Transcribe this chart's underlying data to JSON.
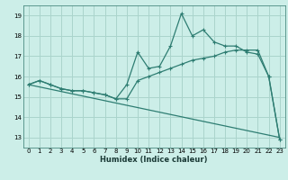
{
  "xlabel": "Humidex (Indice chaleur)",
  "bg_color": "#cceee8",
  "grid_color": "#aad4cc",
  "line_color": "#2e7d72",
  "xlim": [
    -0.5,
    23.5
  ],
  "ylim": [
    12.5,
    19.5
  ],
  "xticks": [
    0,
    1,
    2,
    3,
    4,
    5,
    6,
    7,
    8,
    9,
    10,
    11,
    12,
    13,
    14,
    15,
    16,
    17,
    18,
    19,
    20,
    21,
    22,
    23
  ],
  "yticks": [
    13,
    14,
    15,
    16,
    17,
    18,
    19
  ],
  "line1_x": [
    0,
    1,
    2,
    3,
    4,
    5,
    6,
    7,
    8,
    9,
    10,
    11,
    12,
    13,
    14,
    15,
    16,
    17,
    18,
    19,
    20,
    21,
    22,
    23
  ],
  "line1_y": [
    15.6,
    15.8,
    15.6,
    15.4,
    15.3,
    15.3,
    15.2,
    15.1,
    14.9,
    15.6,
    17.2,
    16.4,
    16.5,
    17.5,
    19.1,
    18.0,
    18.3,
    17.7,
    17.5,
    17.5,
    17.2,
    17.1,
    16.0,
    12.9
  ],
  "line2_x": [
    0,
    1,
    2,
    3,
    4,
    5,
    6,
    7,
    8,
    9,
    10,
    11,
    12,
    13,
    14,
    15,
    16,
    17,
    18,
    19,
    20,
    21,
    22,
    23
  ],
  "line2_y": [
    15.6,
    15.8,
    15.6,
    15.4,
    15.3,
    15.3,
    15.2,
    15.1,
    14.9,
    14.9,
    15.8,
    16.0,
    16.2,
    16.4,
    16.6,
    16.8,
    16.9,
    17.0,
    17.2,
    17.3,
    17.3,
    17.3,
    16.0,
    12.9
  ],
  "line3_x": [
    0,
    23
  ],
  "line3_y": [
    15.6,
    13.0
  ]
}
